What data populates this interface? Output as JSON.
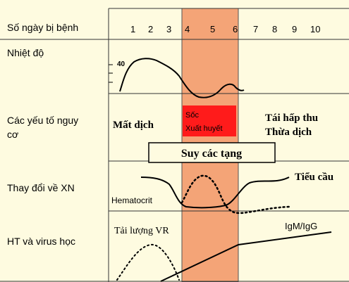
{
  "rows": {
    "days_label": "Số ngày bị bệnh",
    "temperature_label": "Nhiệt độ",
    "risk_label_line1": "Các yếu tố nguy",
    "risk_label_line2": "cơ",
    "lab_label": "Thay đổi về XN",
    "virology_label": "HT và virus học"
  },
  "days": [
    "1",
    "2",
    "3",
    "4",
    "5",
    "6",
    "7",
    "8",
    "9",
    "10"
  ],
  "temperature_tick": "40",
  "risks": {
    "fluid_loss": "Mất dịch",
    "shock_line1": "Sốc",
    "shock_line2": "Xuất huyết",
    "reabsorption_line1": "Tái hấp thu",
    "reabsorption_line2": "Thừa dịch",
    "organ_failure": "Suy các tạng"
  },
  "lab": {
    "platelets": "Tiểu cầu",
    "hematocrit": "Hematocrit"
  },
  "virology": {
    "viral_load": "Tải lượng VR",
    "antibody": "IgM/IgG"
  },
  "colors": {
    "background": "#fefbe0",
    "critical_band": "#f4a477",
    "shock_box": "#ff1b1b"
  }
}
